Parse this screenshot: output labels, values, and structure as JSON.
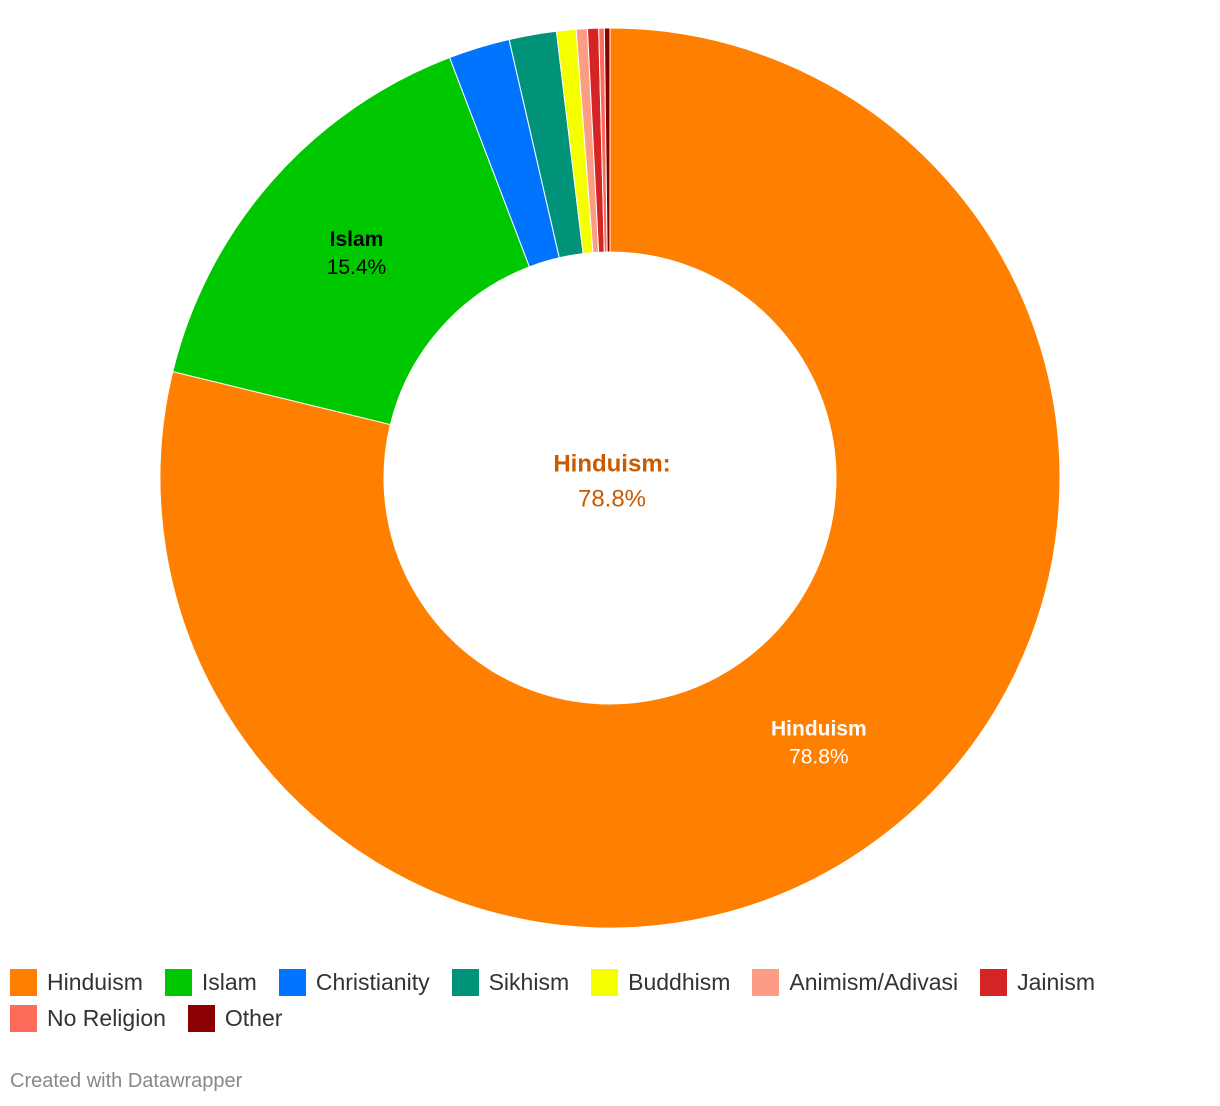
{
  "chart_data": {
    "type": "donut",
    "categories": [
      "Hinduism",
      "Islam",
      "Christianity",
      "Sikhism",
      "Buddhism",
      "Animism/Adivasi",
      "Jainism",
      "No Religion",
      "Other"
    ],
    "values": [
      78.8,
      15.4,
      2.2,
      1.7,
      0.7,
      0.4,
      0.4,
      0.2,
      0.2
    ],
    "value_labels": [
      "78.8%",
      "15.4%",
      null,
      null,
      null,
      null,
      null,
      null,
      null
    ],
    "colors": [
      "#ff7f00",
      "#00c800",
      "#0073ff",
      "#00937a",
      "#f5ff00",
      "#fc9c84",
      "#d42424",
      "#ff6b5b",
      "#8b0000"
    ],
    "center_label": {
      "name": "Hinduism:",
      "value": "78.8%"
    },
    "footer": "Created with Datawrapper"
  }
}
